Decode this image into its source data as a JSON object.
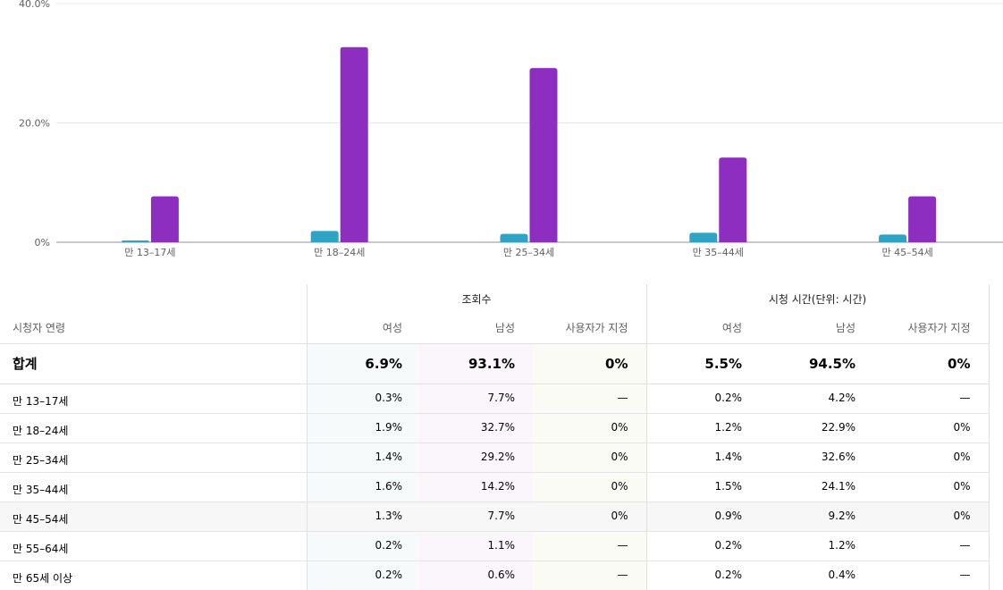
{
  "chart_data": {
    "type": "bar",
    "categories": [
      "만 13–17세",
      "만 18–24세",
      "만 25–34세",
      "만 35–44세",
      "만 45–54세"
    ],
    "series": [
      {
        "values": [
          0.3,
          1.9,
          1.4,
          1.6,
          1.3
        ],
        "color": "#2fa3c4"
      },
      {
        "values": [
          7.7,
          32.7,
          29.2,
          14.2,
          7.7
        ],
        "color": "#8e2ec0"
      }
    ],
    "y_ticks": [
      "0%",
      "20.0%",
      "40.0%"
    ],
    "ylim": [
      0,
      40
    ],
    "grid": true
  },
  "table": {
    "age_header": "시청자 연령",
    "groups": [
      "조회수",
      "시청 시간(단위: 시간)"
    ],
    "subheaders": [
      "여성",
      "남성",
      "사용자가 지정",
      "여성",
      "남성",
      "사용자가 지정"
    ],
    "total": {
      "label": "합계",
      "values": [
        "6.9%",
        "93.1%",
        "0%",
        "5.5%",
        "94.5%",
        "0%"
      ]
    },
    "rows": [
      {
        "label": "만 13–17세",
        "values": [
          "0.3%",
          "7.7%",
          "—",
          "0.2%",
          "4.2%",
          "—"
        ]
      },
      {
        "label": "만 18–24세",
        "values": [
          "1.9%",
          "32.7%",
          "0%",
          "1.2%",
          "22.9%",
          "0%"
        ]
      },
      {
        "label": "만 25–34세",
        "values": [
          "1.4%",
          "29.2%",
          "0%",
          "1.4%",
          "32.6%",
          "0%"
        ]
      },
      {
        "label": "만 35–44세",
        "values": [
          "1.6%",
          "14.2%",
          "0%",
          "1.5%",
          "24.1%",
          "0%"
        ]
      },
      {
        "label": "만 45–54세",
        "values": [
          "1.3%",
          "7.7%",
          "0%",
          "0.9%",
          "9.2%",
          "0%"
        ]
      },
      {
        "label": "만 55–64세",
        "values": [
          "0.2%",
          "1.1%",
          "—",
          "0.2%",
          "1.2%",
          "—"
        ]
      },
      {
        "label": "만 65세 이상",
        "values": [
          "0.2%",
          "0.6%",
          "—",
          "0.2%",
          "0.4%",
          "—"
        ]
      }
    ],
    "highlight_row": 4
  }
}
